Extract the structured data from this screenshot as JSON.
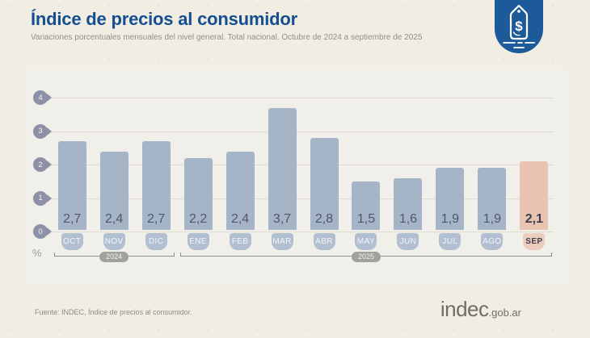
{
  "header": {
    "title": "Índice de precios al consumidor",
    "subtitle": "Variaciones porcentuales mensuales del nivel general. Total nacional. Octubre de 2024 a septiembre de 2025"
  },
  "chart_data": {
    "type": "bar",
    "categories": [
      "OCT",
      "NOV",
      "DIC",
      "ENE",
      "FEB",
      "MAR",
      "ABR",
      "MAY",
      "JUN",
      "JUL",
      "AGO",
      "SEP"
    ],
    "values": [
      2.7,
      2.4,
      2.7,
      2.2,
      2.4,
      3.7,
      2.8,
      1.5,
      1.6,
      1.9,
      1.9,
      2.1
    ],
    "value_labels": [
      "2,7",
      "2,4",
      "2,7",
      "2,2",
      "2,4",
      "3,7",
      "2,8",
      "1,5",
      "1,6",
      "1,9",
      "1,9",
      "2,1"
    ],
    "highlight_index": 11,
    "yticks": [
      4,
      3,
      2,
      1,
      0
    ],
    "ylim": [
      0,
      4
    ],
    "ylabel": "%",
    "grid": true,
    "year_groups": [
      {
        "label": "2024",
        "start": 0,
        "count": 3
      },
      {
        "label": "2025",
        "start": 3,
        "count": 9
      }
    ],
    "colors": {
      "bar": "#a6b4c8",
      "bar_highlight": "#e9c4b0",
      "value_text": "#4e586c",
      "value_text_highlight": "#3e3e50",
      "axis_marker": "#8d90a6"
    }
  },
  "icons": {
    "badge": "price-tag-badge-icon"
  },
  "footer": {
    "source": "Fuente: INDEC, Índice de precios al consumidor.",
    "logo_main": "indec",
    "logo_suffix": ".gob.ar"
  }
}
